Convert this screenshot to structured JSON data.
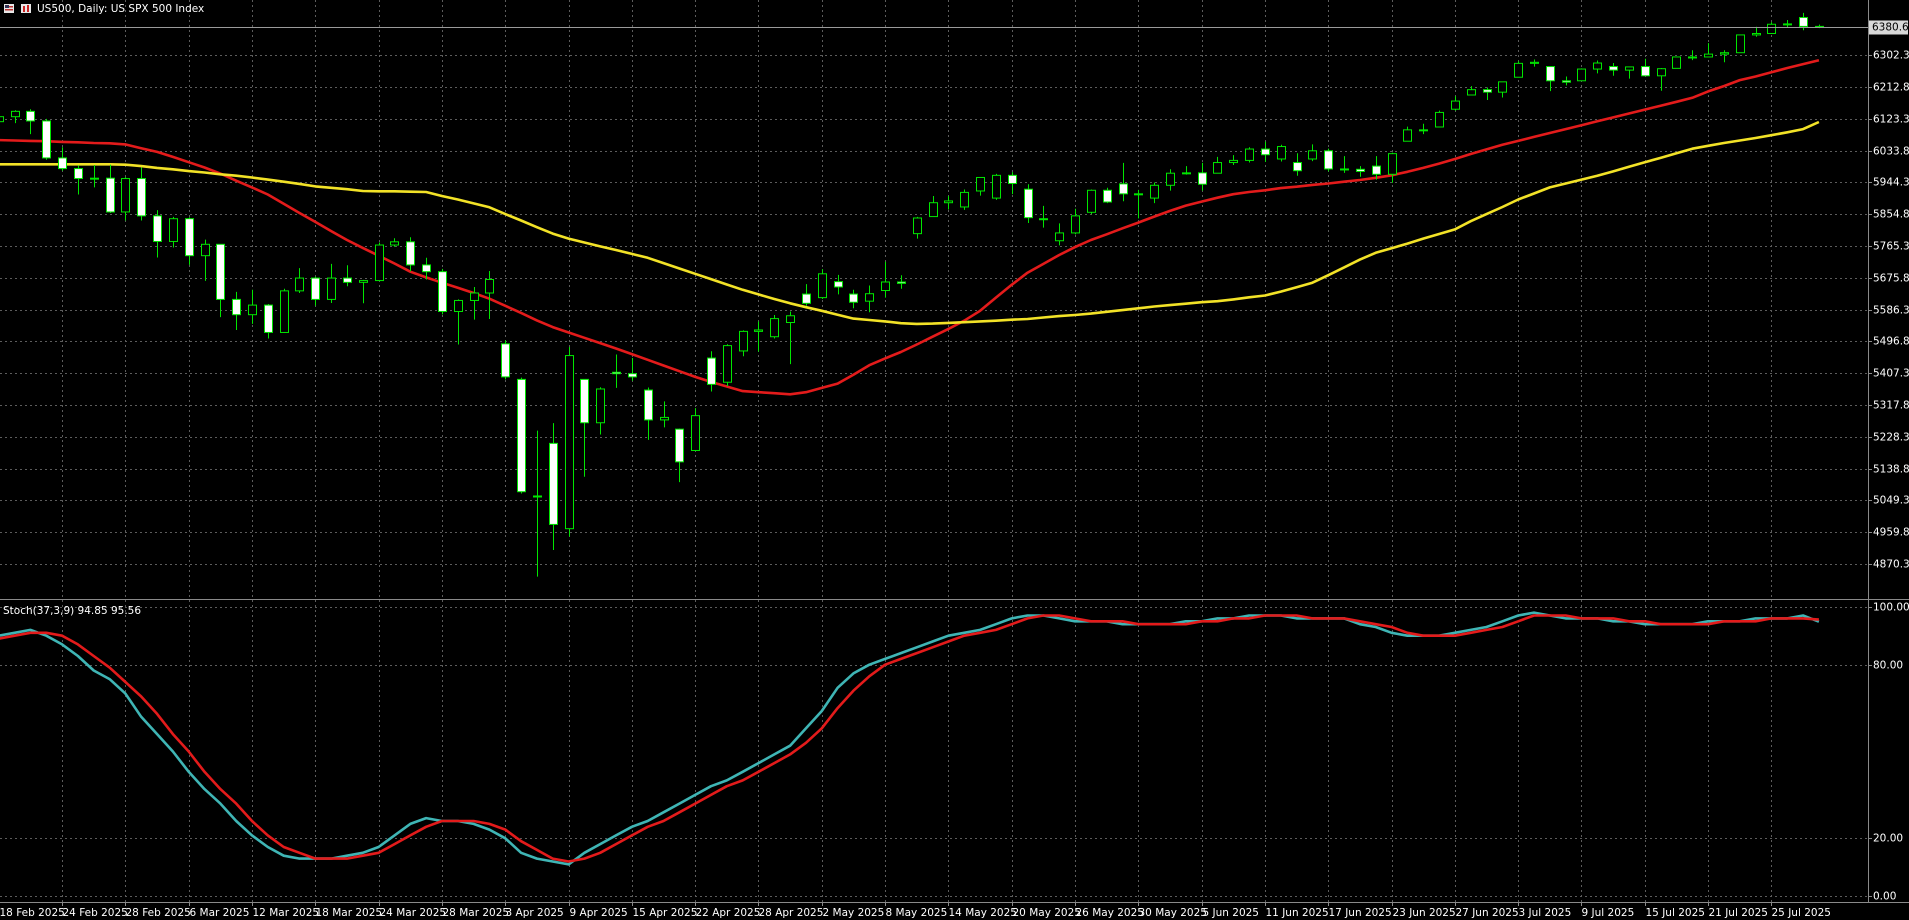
{
  "chart_data": [
    {
      "type": "candlestick",
      "title": "US500, Daily: US SPX 500 Index",
      "categories": [
        "18 Feb 2025",
        null,
        null,
        null,
        "24 Feb 2025",
        null,
        null,
        null,
        "28 Feb 2025",
        null,
        null,
        null,
        "6 Mar 2025",
        null,
        null,
        null,
        "12 Mar 2025",
        null,
        null,
        null,
        "18 Mar 2025",
        null,
        null,
        null,
        "24 Mar 2025",
        null,
        null,
        null,
        "28 Mar 2025",
        null,
        null,
        null,
        "3 Apr 2025",
        null,
        null,
        null,
        "9 Apr 2025",
        null,
        null,
        null,
        "15 Apr 2025",
        null,
        null,
        null,
        "22 Apr 2025",
        null,
        null,
        null,
        "28 Apr 2025",
        null,
        null,
        null,
        "2 May 2025",
        null,
        null,
        null,
        "8 May 2025",
        null,
        null,
        null,
        "14 May 2025",
        null,
        null,
        null,
        "20 May 2025",
        null,
        null,
        null,
        "26 May 2025",
        null,
        null,
        null,
        "30 May 2025",
        null,
        null,
        null,
        "5 Jun 2025",
        null,
        null,
        null,
        "11 Jun 2025",
        null,
        null,
        null,
        "17 Jun 2025",
        null,
        null,
        null,
        "23 Jun 2025",
        null,
        null,
        null,
        "27 Jun 2025",
        null,
        null,
        null,
        "3 Jul 2025",
        null,
        null,
        null,
        "9 Jul 2025",
        null,
        null,
        null,
        "15 Jul 2025",
        null,
        null,
        null,
        "21 Jul 2025",
        null,
        null,
        null,
        "25 Jul 2025",
        null,
        null,
        null
      ],
      "open": [
        6115,
        6129,
        6144,
        6117,
        6013,
        5983,
        5955,
        5956,
        5861,
        5955,
        5850,
        5778,
        5842,
        5738,
        5770,
        5615,
        5572,
        5599,
        5522,
        5639,
        5675,
        5615,
        5675,
        5663,
        5668,
        5768,
        5777,
        5712,
        5693,
        5581,
        5612,
        5633,
        5490,
        5390,
        5060,
        5210,
        4970,
        5390,
        5268,
        5410,
        5406,
        5360,
        5276,
        5250,
        5190,
        5450,
        5382,
        5470,
        5525,
        5510,
        5550,
        5630,
        5620,
        5665,
        5630,
        5610,
        5640,
        5664,
        5800,
        5848,
        5887,
        5875,
        5920,
        5900,
        5964,
        5925,
        5840,
        5780,
        5802,
        5860,
        5922,
        5940,
        5912,
        5900,
        5936,
        5970,
        5971,
        5970,
        6000,
        6006,
        6038,
        6010,
        6000,
        6010,
        6033,
        5982,
        5981,
        5990,
        5967,
        6060,
        6092,
        6100,
        6150,
        6190,
        6205,
        6198,
        6240,
        6279,
        6270,
        6230,
        6230,
        6263,
        6270,
        6260,
        6270,
        6244,
        6265,
        6297,
        6297,
        6305,
        6309,
        6359,
        6363,
        6389,
        6408,
        6383
      ],
      "high": [
        6140,
        6147,
        6150,
        6123,
        6043,
        5992,
        5993,
        5994,
        5959,
        5986,
        5866,
        5847,
        5846,
        5783,
        5771,
        5636,
        5642,
        5602,
        5645,
        5703,
        5679,
        5715,
        5711,
        5670,
        5775,
        5787,
        5790,
        5732,
        5701,
        5615,
        5650,
        5695,
        5500,
        5395,
        5246,
        5267,
        5481,
        5390,
        5368,
        5460,
        5450,
        5367,
        5328,
        5252,
        5309,
        5469,
        5489,
        5528,
        5553,
        5571,
        5581,
        5658,
        5700,
        5684,
        5642,
        5654,
        5721,
        5683,
        5847,
        5906,
        5906,
        5924,
        5958,
        5968,
        5973,
        5939,
        5878,
        5829,
        5870,
        5924,
        5929,
        5999,
        5923,
        5944,
        5981,
        5990,
        5999,
        6016,
        6021,
        6043,
        6059,
        6050,
        6026,
        6051,
        6039,
        6018,
        5990,
        6018,
        6028,
        6101,
        6109,
        6146,
        6187,
        6215,
        6211,
        6227,
        6285,
        6290,
        6270,
        6242,
        6265,
        6287,
        6280,
        6270,
        6292,
        6266,
        6298,
        6316,
        6336,
        6316,
        6360,
        6382,
        6395,
        6401,
        6421,
        6388
      ],
      "low": [
        6100,
        6111,
        6080,
        6008,
        5977,
        5910,
        5930,
        5858,
        5837,
        5837,
        5733,
        5761,
        5712,
        5667,
        5565,
        5529,
        5546,
        5505,
        5521,
        5633,
        5597,
        5605,
        5652,
        5604,
        5668,
        5763,
        5694,
        5671,
        5573,
        5488,
        5558,
        5560,
        5390,
        5069,
        4835,
        4910,
        4948,
        5116,
        5235,
        5366,
        5386,
        5220,
        5255,
        5101,
        5190,
        5356,
        5371,
        5455,
        5468,
        5505,
        5433,
        5597,
        5616,
        5629,
        5590,
        5579,
        5620,
        5645,
        5786,
        5848,
        5868,
        5867,
        5907,
        5895,
        5911,
        5830,
        5817,
        5767,
        5798,
        5855,
        5886,
        5891,
        5843,
        5886,
        5921,
        5966,
        5921,
        5970,
        5993,
        6000,
        6002,
        6003,
        5963,
        6004,
        5975,
        5971,
        5960,
        5952,
        5943,
        6060,
        6080,
        6100,
        6146,
        6190,
        6176,
        6183,
        6240,
        6270,
        6201,
        6217,
        6230,
        6251,
        6244,
        6236,
        6243,
        6202,
        6265,
        6288,
        6297,
        6282,
        6309,
        6354,
        6363,
        6380,
        6372,
        6378
      ],
      "close": [
        6129,
        6144,
        6117,
        6013,
        5983,
        5955,
        5956,
        5861,
        5955,
        5850,
        5778,
        5842,
        5738,
        5770,
        5615,
        5572,
        5599,
        5522,
        5639,
        5675,
        5615,
        5675,
        5663,
        5668,
        5768,
        5777,
        5712,
        5693,
        5581,
        5612,
        5633,
        5671,
        5397,
        5074,
        5062,
        4982,
        5457,
        5268,
        5363,
        5406,
        5397,
        5276,
        5283,
        5158,
        5288,
        5376,
        5485,
        5525,
        5529,
        5561,
        5569,
        5604,
        5687,
        5650,
        5607,
        5631,
        5664,
        5660,
        5844,
        5887,
        5892,
        5916,
        5958,
        5964,
        5941,
        5845,
        5842,
        5802,
        5850,
        5922,
        5889,
        5912,
        5912,
        5936,
        5970,
        5971,
        5939,
        6000,
        6006,
        6038,
        6022,
        6045,
        5977,
        6033,
        5982,
        5981,
        5975,
        5967,
        6025,
        6092,
        6092,
        6141,
        6173,
        6205,
        6198,
        6227,
        6279,
        6282,
        6230,
        6226,
        6263,
        6280,
        6260,
        6269,
        6244,
        6264,
        6297,
        6297,
        6305,
        6309,
        6359,
        6363,
        6389,
        6390,
        6383,
        6380.6
      ],
      "overlays": [
        {
          "color": "#e31b1b",
          "values": [
            6063,
            6062,
            6061,
            6060,
            6058,
            6057,
            6055,
            6054,
            6051,
            6040,
            6030,
            6016,
            6001,
            5986,
            5969,
            5949,
            5930,
            5910,
            5884,
            5858,
            5833,
            5807,
            5782,
            5760,
            5738,
            5716,
            5693,
            5677,
            5662,
            5648,
            5633,
            5617,
            5597,
            5577,
            5556,
            5537,
            5522,
            5507,
            5492,
            5477,
            5461,
            5445,
            5429,
            5413,
            5397,
            5383,
            5370,
            5357,
            5354,
            5351,
            5348,
            5354,
            5366,
            5378,
            5403,
            5430,
            5449,
            5467,
            5488,
            5510,
            5532,
            5555,
            5583,
            5620,
            5656,
            5690,
            5715,
            5740,
            5762,
            5782,
            5798,
            5815,
            5831,
            5848,
            5864,
            5879,
            5890,
            5901,
            5911,
            5917,
            5922,
            5928,
            5932,
            5937,
            5941,
            5946,
            5951,
            5957,
            5964,
            5974,
            5985,
            5997,
            6010,
            6024,
            6037,
            6050,
            6061,
            6072,
            6083,
            6094,
            6105,
            6116,
            6127,
            6138,
            6149,
            6160,
            6171,
            6182,
            6200,
            6215,
            6232,
            6242,
            6254,
            6266,
            6277,
            6288
          ]
        },
        {
          "color": "#f2e227",
          "values": [
            5995,
            5995,
            5995,
            5995,
            5995,
            5995,
            5995,
            5995,
            5994,
            5990,
            5985,
            5981,
            5976,
            5972,
            5967,
            5963,
            5958,
            5952,
            5946,
            5940,
            5933,
            5929,
            5925,
            5920,
            5919,
            5919,
            5918,
            5917,
            5906,
            5896,
            5885,
            5874,
            5855,
            5837,
            5818,
            5800,
            5786,
            5775,
            5764,
            5754,
            5743,
            5732,
            5717,
            5702,
            5687,
            5672,
            5657,
            5642,
            5629,
            5616,
            5604,
            5593,
            5583,
            5572,
            5561,
            5557,
            5553,
            5548,
            5546,
            5547,
            5549,
            5551,
            5553,
            5555,
            5558,
            5560,
            5564,
            5568,
            5571,
            5575,
            5580,
            5585,
            5590,
            5595,
            5599,
            5603,
            5607,
            5610,
            5615,
            5621,
            5626,
            5637,
            5649,
            5662,
            5683,
            5705,
            5727,
            5746,
            5759,
            5772,
            5786,
            5799,
            5812,
            5835,
            5855,
            5875,
            5896,
            5913,
            5930,
            5941,
            5952,
            5963,
            5975,
            5988,
            6001,
            6013,
            6026,
            6039,
            6047,
            6055,
            6062,
            6069,
            6077,
            6085,
            6094,
            6114
          ]
        }
      ],
      "current_price": 6380.6,
      "ylim": [
        4775,
        6446
      ],
      "yticks": [
        6302.3,
        6212.8,
        6123.3,
        6033.8,
        5944.3,
        5854.8,
        5765.3,
        5675.8,
        5586.3,
        5496.8,
        5407.3,
        5317.8,
        5228.3,
        5138.8,
        5049.3,
        4959.8,
        4870.3
      ],
      "grid": true,
      "bull_color": "#000000",
      "bear_color": "#ffffff",
      "outline_color": "#00e600"
    },
    {
      "type": "line",
      "title": "Stoch(37,3,9) 94.85 95.56",
      "series": [
        {
          "color": "#3fb5b5",
          "values": [
            90,
            91,
            92,
            90,
            87,
            83,
            78,
            75,
            70,
            62,
            56,
            50,
            43,
            37,
            32,
            26,
            21,
            17,
            14,
            13,
            13,
            13,
            14,
            15,
            17,
            21,
            25,
            27,
            26,
            26,
            25,
            23,
            20,
            15,
            13,
            12,
            11,
            15,
            18,
            21,
            24,
            26,
            29,
            32,
            35,
            38,
            40,
            43,
            46,
            49,
            52,
            58,
            64,
            72,
            77,
            80,
            82,
            84,
            86,
            88,
            90,
            91,
            92,
            94,
            96,
            97,
            97,
            96,
            95,
            95,
            95,
            94,
            94,
            94,
            94,
            95,
            95,
            96,
            96,
            97,
            97,
            97,
            96,
            96,
            96,
            96,
            94,
            93,
            91,
            90,
            90,
            90,
            91,
            92,
            93,
            95,
            97,
            98,
            97,
            96,
            96,
            96,
            95,
            95,
            94,
            94,
            94,
            94,
            95,
            95,
            95,
            96,
            96,
            96,
            97,
            94.85
          ]
        },
        {
          "color": "#e31b1b",
          "values": [
            89,
            90,
            91,
            91,
            90,
            87,
            83,
            79,
            74,
            69,
            63,
            56,
            50,
            43,
            37,
            32,
            26,
            21,
            17,
            15,
            13,
            13,
            13,
            14,
            15,
            18,
            21,
            24,
            26,
            26,
            26,
            25,
            23,
            19,
            16,
            13,
            12,
            13,
            15,
            18,
            21,
            24,
            26,
            29,
            32,
            35,
            38,
            40,
            43,
            46,
            49,
            53,
            58,
            65,
            71,
            76,
            80,
            82,
            84,
            86,
            88,
            90,
            91,
            92,
            94,
            96,
            97,
            97,
            96,
            95,
            95,
            95,
            94,
            94,
            94,
            94,
            95,
            95,
            96,
            96,
            97,
            97,
            97,
            96,
            96,
            96,
            95,
            94,
            93,
            91,
            90,
            90,
            90,
            91,
            92,
            93,
            95,
            97,
            97,
            97,
            96,
            96,
            96,
            95,
            95,
            94,
            94,
            94,
            94,
            95,
            95,
            95,
            96,
            96,
            96,
            95.56
          ]
        }
      ],
      "ylim": [
        -2,
        102
      ],
      "yticks": [
        {
          "value": 100,
          "label": "100.00"
        },
        {
          "value": 80,
          "label": "80.00"
        },
        {
          "value": 20,
          "label": "20.00"
        },
        {
          "value": 0,
          "label": "0.00"
        }
      ],
      "grid": true
    }
  ]
}
